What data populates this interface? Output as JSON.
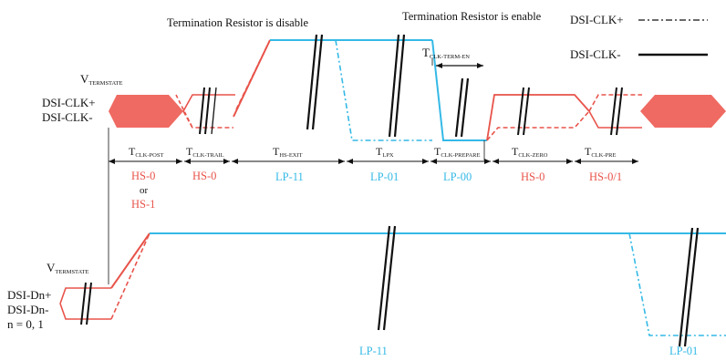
{
  "colors": {
    "hs": "#e8534a",
    "hs_fill": "#ef6a62",
    "lp": "#34b9e6",
    "black": "#111111"
  },
  "header": {
    "termination_disable": "Termination Resistor is disable",
    "termination_enable": "Termination Resistor is enable"
  },
  "legend": {
    "clk_plus": "DSI-CLK+",
    "clk_minus": "DSI-CLK-"
  },
  "clock": {
    "label_plus": "DSI-CLK+",
    "label_minus": "DSI-CLK-",
    "vref": {
      "main": "V",
      "sub": "TERMSTATE"
    },
    "t_term_en": {
      "main": "T",
      "sub": "CLK-TERM-EN"
    },
    "phases": [
      {
        "main": "T",
        "sub": "CLK-POST"
      },
      {
        "main": "T",
        "sub": "CLK-TRAIL"
      },
      {
        "main": "T",
        "sub": "HS-EXIT"
      },
      {
        "main": "T",
        "sub": "LPX"
      },
      {
        "main": "T",
        "sub": "CLK-PREPARE"
      },
      {
        "main": "T",
        "sub": "CLK-ZERO"
      },
      {
        "main": "T",
        "sub": "CLK-PRE"
      }
    ],
    "states": {
      "hs0_or": "HS-0",
      "or": "or",
      "hs1": "HS-1",
      "hs0_a": "HS-0",
      "lp11": "LP-11",
      "lp01": "LP-01",
      "lp00": "LP-00",
      "hs0_b": "HS-0",
      "hs01": "HS-0/1"
    }
  },
  "data_lane": {
    "label_plus": "DSI-Dn+",
    "label_minus": "DSI-Dn-",
    "label_n": "n = 0, 1",
    "vref": {
      "main": "V",
      "sub": "TERMSTATE"
    },
    "lp11": "LP-11",
    "lp01": "LP-01"
  }
}
